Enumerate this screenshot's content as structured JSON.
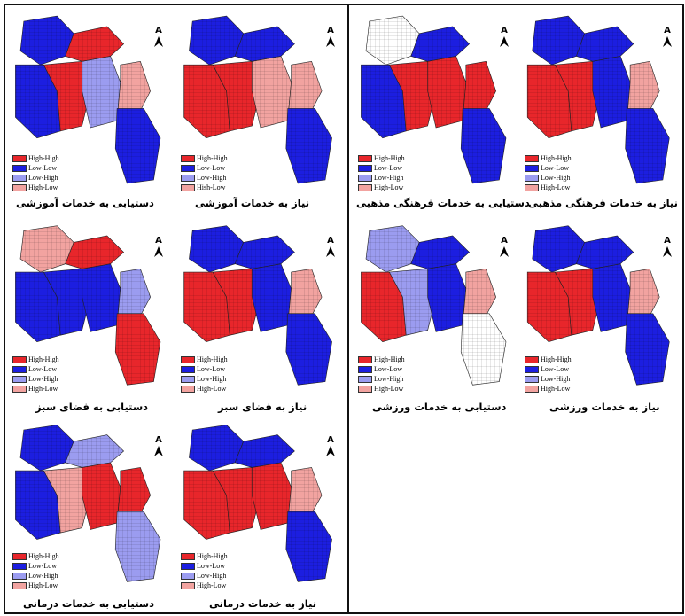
{
  "colors": {
    "high_high": "#e8262b",
    "low_low": "#1c1ee0",
    "low_high": "#9b9cf0",
    "high_low": "#f2a3a0",
    "none": "#ffffff"
  },
  "north_symbol": "north-arrow-icon",
  "north_letter": "A",
  "legend_labels": {
    "high_high": "High-High",
    "low_low": "Low-Low",
    "low_high": "Low-High",
    "high_low": "High-Low"
  },
  "panels": [
    {
      "id": "education-access",
      "caption": "دستیابی به خدمات آموزشی",
      "legend": [
        "High-High",
        "Low-Low",
        "Low-High",
        "High-Low"
      ]
    },
    {
      "id": "education-need",
      "caption": "نیاز به خدمات آموزشی",
      "legend": [
        "High-High",
        "Low-Low",
        "Low-High",
        "Hish-Low"
      ]
    },
    {
      "id": "culture-access",
      "caption": "دستیابی به خدمات فرهنگی مذهبی",
      "legend": [
        "High-High",
        "Low-Low",
        "Low-High",
        "High-Low"
      ]
    },
    {
      "id": "culture-need",
      "caption": "نیاز به خدمات فرهنگی مذهبی",
      "legend": [
        "High-High",
        "Low-Low",
        "Low-High",
        "High-Low"
      ]
    },
    {
      "id": "green-access",
      "caption": "دستیابی به فضای سبز",
      "legend": [
        "High-High",
        "Low-Low",
        "Low-High",
        "High-Low"
      ]
    },
    {
      "id": "green-need",
      "caption": "نیاز به فضای سبز",
      "legend": [
        "High-High",
        "Low-Low",
        "Low-High",
        "High-Low"
      ]
    },
    {
      "id": "sport-access",
      "caption": "دستیابی به خدمات ورزشی",
      "legend": [
        "High-High",
        "Low-Low",
        "Low-High",
        "High-Low"
      ]
    },
    {
      "id": "sport-need",
      "caption": "نیاز به خدمات ورزشی",
      "legend": [
        "High-High",
        "Low-Low",
        "Low-High",
        "High-Low"
      ]
    },
    {
      "id": "health-access",
      "caption": "دستیابی به خدمات درمانی",
      "legend": [
        "High-High",
        "Low-Low",
        "Low-High",
        "High-Low"
      ]
    },
    {
      "id": "health-need",
      "caption": "نیاز به خدمات درمانی",
      "legend": [
        "High-High",
        "Low-Low",
        "Low-High",
        "High-Low"
      ]
    }
  ],
  "zones": {
    "education-access": [
      "low_low",
      "low_low",
      "high_high",
      "low_high",
      "high_high",
      "high_low",
      "low_low"
    ],
    "education-need": [
      "low_low",
      "high_high",
      "high_high",
      "high_low",
      "low_low",
      "high_low",
      "low_low"
    ],
    "culture-access": [
      "none",
      "low_low",
      "high_high",
      "high_high",
      "low_low",
      "high_high",
      "low_low"
    ],
    "culture-need": [
      "low_low",
      "high_high",
      "high_high",
      "low_low",
      "low_low",
      "high_low",
      "low_low"
    ],
    "green-access": [
      "high_low",
      "low_low",
      "low_low",
      "low_low",
      "high_high",
      "low_high",
      "high_high"
    ],
    "green-need": [
      "low_low",
      "high_high",
      "high_high",
      "low_low",
      "low_low",
      "high_low",
      "low_low"
    ],
    "sport-access": [
      "low_high",
      "high_high",
      "low_high",
      "low_low",
      "low_low",
      "high_low",
      "none"
    ],
    "sport-need": [
      "low_low",
      "high_high",
      "high_high",
      "low_low",
      "low_low",
      "high_low",
      "low_low"
    ],
    "health-access": [
      "low_low",
      "low_low",
      "high_low",
      "high_high",
      "low_high",
      "high_high",
      "low_high"
    ],
    "health-need": [
      "low_low",
      "high_high",
      "high_high",
      "high_high",
      "low_low",
      "high_low",
      "low_low"
    ]
  }
}
